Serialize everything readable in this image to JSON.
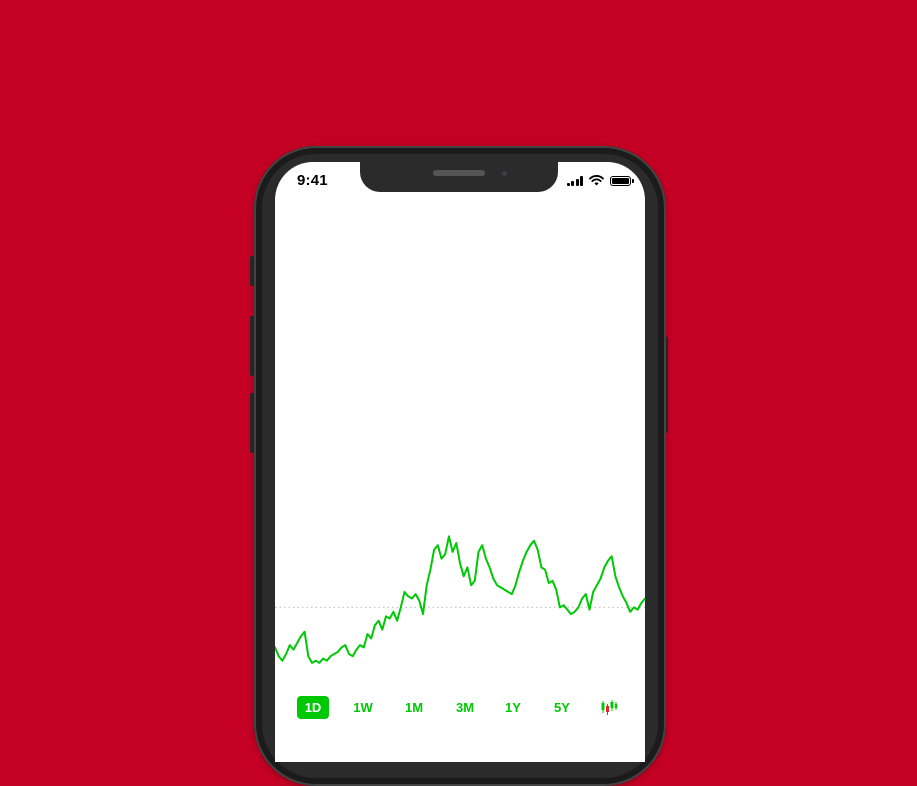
{
  "background_color": "#c40024",
  "accent_color": "#00c805",
  "status_bar": {
    "time": "9:41",
    "icons": [
      "cellular-signal-icon",
      "wifi-icon",
      "battery-icon"
    ]
  },
  "chart_data": {
    "type": "line",
    "color": "#00c805",
    "baseline_style": "dotted",
    "x_axis_visible": false,
    "y_axis_visible": false,
    "grid": false,
    "ylim": [
      0,
      100
    ],
    "baseline": 30,
    "x": [
      0,
      1,
      2,
      3,
      4,
      5,
      6,
      7,
      8,
      9,
      10,
      11,
      12,
      13,
      14,
      15,
      16,
      17,
      18,
      19,
      20,
      21,
      22,
      23,
      24,
      25,
      26,
      27,
      28,
      29,
      30,
      31,
      32,
      33,
      34,
      35,
      36,
      37,
      38,
      39,
      40,
      41,
      42,
      43,
      44,
      45,
      46,
      47,
      48,
      49,
      50,
      51,
      52,
      53,
      54,
      55,
      56,
      57,
      58,
      59,
      60,
      61,
      62,
      63,
      64,
      65,
      66,
      67,
      68,
      69,
      70,
      71,
      72,
      73,
      74,
      75,
      76,
      77,
      78,
      79,
      80,
      81,
      82,
      83,
      84,
      85,
      86,
      87,
      88,
      89,
      90,
      91,
      92,
      93,
      94,
      95,
      96,
      97,
      98,
      99,
      100
    ],
    "y": [
      12,
      8,
      6,
      9,
      13,
      11,
      14,
      17,
      19,
      8,
      5,
      6,
      5,
      7,
      6,
      8,
      9,
      10,
      12,
      13,
      9,
      8,
      11,
      13,
      12,
      18,
      16,
      22,
      24,
      20,
      26,
      25,
      28,
      24,
      30,
      37,
      35,
      34,
      36,
      33,
      27,
      40,
      47,
      56,
      58,
      52,
      54,
      62,
      55,
      59,
      50,
      44,
      48,
      40,
      42,
      55,
      58,
      52,
      48,
      43,
      40,
      39,
      38,
      37,
      36,
      40,
      46,
      51,
      55,
      58,
      60,
      56,
      48,
      47,
      41,
      42,
      38,
      30,
      31,
      29,
      27,
      28,
      30,
      34,
      36,
      29,
      37,
      40,
      43,
      48,
      51,
      53,
      44,
      39,
      35,
      32,
      28,
      30,
      29,
      32,
      34
    ]
  },
  "range_selector": {
    "options": [
      {
        "label": "1D",
        "active": true
      },
      {
        "label": "1W",
        "active": false
      },
      {
        "label": "1M",
        "active": false
      },
      {
        "label": "3M",
        "active": false
      },
      {
        "label": "1Y",
        "active": false
      },
      {
        "label": "5Y",
        "active": false
      }
    ],
    "candlestick_icon": "candlestick-chart-icon"
  }
}
